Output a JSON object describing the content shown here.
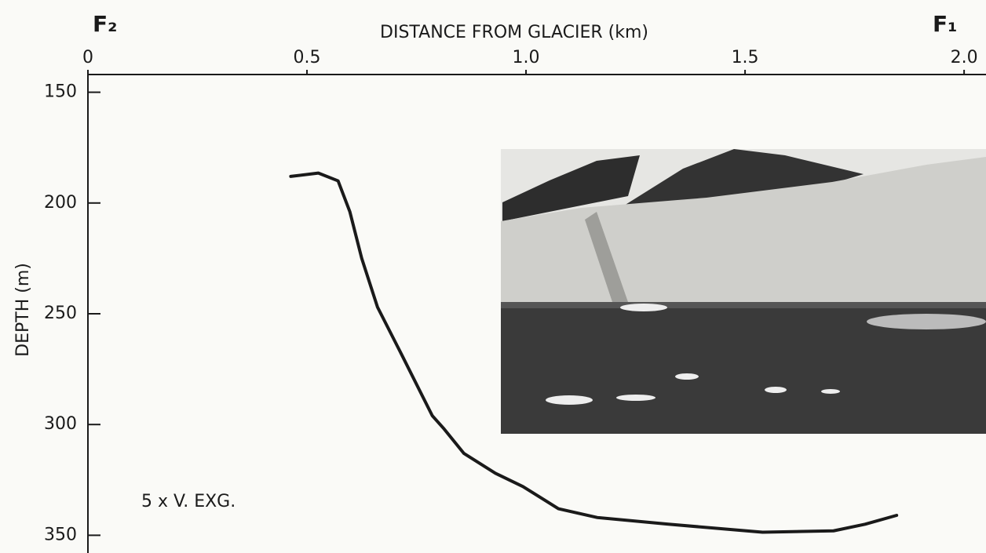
{
  "chart_data": {
    "type": "line",
    "title": "DISTANCE FROM GLACIER (km)",
    "y_label": "DEPTH (m)",
    "annotation": "5 x V. EXG.",
    "endpoint_labels": [
      "F₂",
      "F₁"
    ],
    "x": [
      0.463,
      0.526,
      0.571,
      0.598,
      0.625,
      0.661,
      0.715,
      0.786,
      0.813,
      0.858,
      0.93,
      0.993,
      1.074,
      1.163,
      1.325,
      1.54,
      1.702,
      1.774,
      1.846
    ],
    "series": [
      {
        "color": "#1a1a1a",
        "values": [
          188,
          186.5,
          190,
          204,
          225,
          247,
          268,
          296,
          302,
          313,
          322,
          328,
          338,
          342,
          345,
          348.6,
          348,
          345,
          341
        ]
      }
    ],
    "xlim": [
      0,
      2.05
    ],
    "xticks": [
      0,
      0.5,
      {
        "value": 1,
        "label": "1.0"
      },
      1.5,
      {
        "value": 2,
        "label": "2.0"
      }
    ],
    "ylim": [
      142,
      358
    ],
    "y_inverted": true,
    "yticks": [
      150,
      200,
      250,
      300,
      350
    ]
  }
}
